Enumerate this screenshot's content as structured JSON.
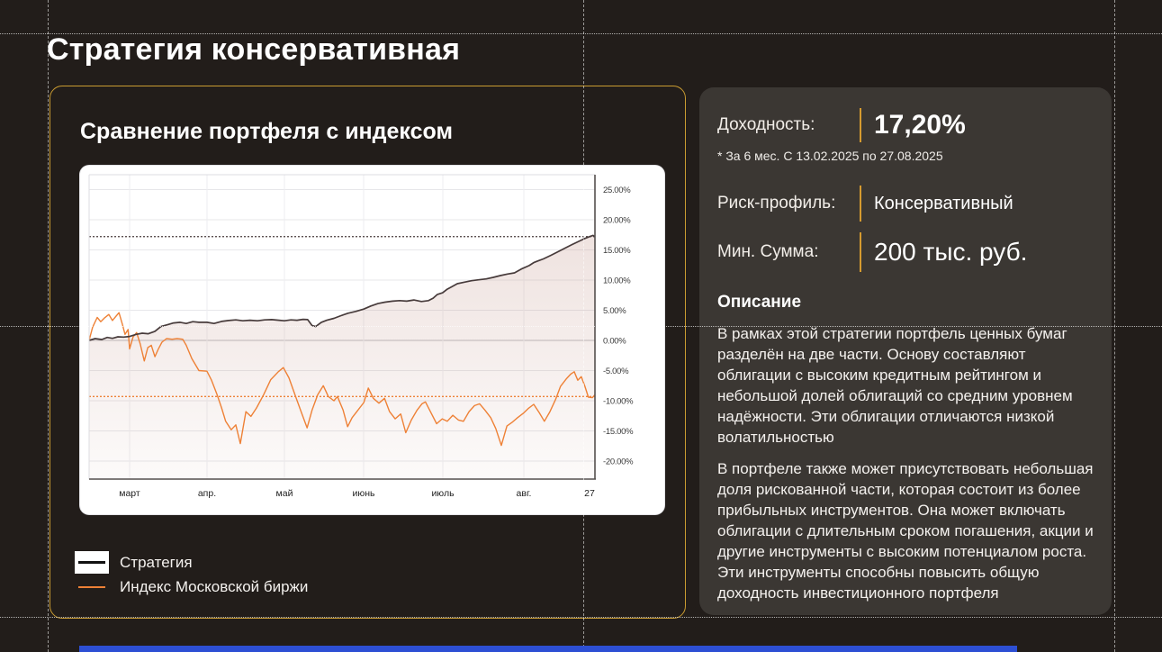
{
  "page": {
    "title": "Стратегия консервативная"
  },
  "chart_card": {
    "title": "Сравнение портфеля с индексом",
    "legend": [
      {
        "label": "Стратегия",
        "color": "#473b3b"
      },
      {
        "label": "Индекс Московской биржи",
        "color": "#ee8136"
      }
    ]
  },
  "info_card": {
    "returns": {
      "label": "Доходность:",
      "value": "17,20%"
    },
    "footnote": "* За 6 мес. С 13.02.2025 по 27.08.2025",
    "risk": {
      "label": "Риск-профиль:",
      "value": "Консервативный"
    },
    "min_sum": {
      "label": "Мин. Сумма:",
      "value": "200 тыс. руб."
    },
    "description_title": "Описание",
    "paragraphs": [
      "В рамках этой стратегии портфель ценных бумаг разделён на две части. Основу составляют облигации с высоким кредитным рейтингом и небольшой долей облигаций со средним уровнем надёжности. Эти облигации отличаются низкой волатильностью",
      "В портфеле также может присутствовать небольшая доля рискованной части, которая состоит из более прибыльных инструментов. Она может включать облигации с длительным сроком погашения, акции и другие инструменты с высоким потенциалом роста. Эти инструменты способны повысить общую доходность инвестиционного портфеля"
    ]
  },
  "colors": {
    "background": "#221d1a",
    "card_border": "#c99b31",
    "accent_gold": "#d69b2f",
    "strategy_line": "#473b3b",
    "index_line": "#ee8136",
    "panel": "#ffffff",
    "bottom_bar": "#2d4fd4"
  },
  "chart_data": {
    "type": "line",
    "title": "Сравнение портфеля с индексом",
    "x_axis": {
      "tick_labels": [
        "март",
        "апр.",
        "май",
        "июнь",
        "июль",
        "авг."
      ],
      "end_label": "27",
      "period": "13.02.2025 — 27.08.2025"
    },
    "y_axis": {
      "tick_values": [
        25,
        20,
        15,
        10,
        5,
        0,
        -5,
        -10,
        -15,
        -20
      ],
      "tick_labels": [
        "25.00%",
        "20.00%",
        "15.00%",
        "10.00%",
        "5.00%",
        "0.00%",
        "-5.00%",
        "-10.00%",
        "-15.00%",
        "-20.00%"
      ],
      "unit": "%",
      "ylim": [
        -23,
        27.5
      ]
    },
    "grid": true,
    "legend_position": "below-left",
    "reference_lines": [
      {
        "value": 17.2,
        "color": "#473b3b",
        "style": "dotted",
        "series": "Стратегия"
      },
      {
        "value": -9.3,
        "color": "#ee8136",
        "style": "dotted",
        "series": "Индекс Московской биржи"
      }
    ],
    "series": [
      {
        "name": "Стратегия",
        "color": "#473b3b",
        "final_value_pct": 17.2,
        "points": [
          [
            0,
            0
          ],
          [
            0.012,
            0.3
          ],
          [
            0.025,
            0.15
          ],
          [
            0.036,
            0.5
          ],
          [
            0.046,
            0.35
          ],
          [
            0.057,
            0.6
          ],
          [
            0.068,
            0.55
          ],
          [
            0.08,
            0.65
          ],
          [
            0.093,
            1.0
          ],
          [
            0.105,
            1.2
          ],
          [
            0.117,
            1.1
          ],
          [
            0.13,
            1.5
          ],
          [
            0.142,
            2.3
          ],
          [
            0.155,
            2.6
          ],
          [
            0.167,
            2.9
          ],
          [
            0.18,
            3.0
          ],
          [
            0.192,
            2.8
          ],
          [
            0.205,
            3.1
          ],
          [
            0.217,
            3.0
          ],
          [
            0.233,
            3.0
          ],
          [
            0.247,
            2.8
          ],
          [
            0.262,
            3.15
          ],
          [
            0.276,
            3.3
          ],
          [
            0.29,
            3.4
          ],
          [
            0.304,
            3.25
          ],
          [
            0.318,
            3.35
          ],
          [
            0.333,
            3.25
          ],
          [
            0.347,
            3.4
          ],
          [
            0.361,
            3.45
          ],
          [
            0.375,
            3.35
          ],
          [
            0.386,
            3.25
          ],
          [
            0.399,
            3.4
          ],
          [
            0.411,
            3.35
          ],
          [
            0.423,
            3.5
          ],
          [
            0.432,
            3.45
          ],
          [
            0.441,
            2.45
          ],
          [
            0.448,
            2.3
          ],
          [
            0.459,
            3.0
          ],
          [
            0.47,
            3.35
          ],
          [
            0.484,
            3.65
          ],
          [
            0.498,
            4.1
          ],
          [
            0.512,
            4.5
          ],
          [
            0.527,
            4.8
          ],
          [
            0.543,
            5.2
          ],
          [
            0.557,
            5.7
          ],
          [
            0.571,
            6.1
          ],
          [
            0.585,
            6.35
          ],
          [
            0.6,
            6.5
          ],
          [
            0.614,
            6.6
          ],
          [
            0.628,
            6.5
          ],
          [
            0.642,
            6.7
          ],
          [
            0.657,
            6.45
          ],
          [
            0.671,
            6.6
          ],
          [
            0.68,
            7.0
          ],
          [
            0.688,
            7.6
          ],
          [
            0.699,
            7.9
          ],
          [
            0.708,
            8.5
          ],
          [
            0.717,
            8.9
          ],
          [
            0.728,
            9.4
          ],
          [
            0.742,
            9.65
          ],
          [
            0.756,
            9.9
          ],
          [
            0.77,
            10.05
          ],
          [
            0.785,
            10.2
          ],
          [
            0.799,
            10.45
          ],
          [
            0.813,
            10.75
          ],
          [
            0.827,
            11.0
          ],
          [
            0.841,
            11.2
          ],
          [
            0.856,
            11.9
          ],
          [
            0.87,
            12.4
          ],
          [
            0.879,
            12.9
          ],
          [
            0.888,
            13.2
          ],
          [
            0.898,
            13.5
          ],
          [
            0.913,
            14.1
          ],
          [
            0.927,
            14.7
          ],
          [
            0.941,
            15.3
          ],
          [
            0.955,
            15.9
          ],
          [
            0.97,
            16.5
          ],
          [
            0.98,
            16.9
          ],
          [
            0.989,
            17.2
          ],
          [
            0.996,
            17.4
          ],
          [
            1,
            17.2
          ]
        ]
      },
      {
        "name": "Индекс Московской биржи",
        "color": "#ee8136",
        "final_value_pct": -9.0,
        "points": [
          [
            0,
            0
          ],
          [
            0.007,
            2.2
          ],
          [
            0.016,
            3.8
          ],
          [
            0.023,
            3.1
          ],
          [
            0.03,
            3.7
          ],
          [
            0.039,
            4.3
          ],
          [
            0.046,
            3.3
          ],
          [
            0.059,
            4.6
          ],
          [
            0.066,
            2.6
          ],
          [
            0.071,
            1.0
          ],
          [
            0.077,
            1.8
          ],
          [
            0.08,
            -1.4
          ],
          [
            0.087,
            0.6
          ],
          [
            0.094,
            1.3
          ],
          [
            0.101,
            -0.6
          ],
          [
            0.109,
            -3.4
          ],
          [
            0.116,
            -1.2
          ],
          [
            0.123,
            -0.8
          ],
          [
            0.13,
            -2.7
          ],
          [
            0.137,
            -1.4
          ],
          [
            0.144,
            -0.3
          ],
          [
            0.153,
            0.3
          ],
          [
            0.164,
            0.2
          ],
          [
            0.174,
            0.3
          ],
          [
            0.185,
            0.2
          ],
          [
            0.192,
            -0.8
          ],
          [
            0.203,
            -3.0
          ],
          [
            0.217,
            -5.0
          ],
          [
            0.233,
            -5.1
          ],
          [
            0.242,
            -6.6
          ],
          [
            0.253,
            -9.0
          ],
          [
            0.262,
            -11.2
          ],
          [
            0.27,
            -13.4
          ],
          [
            0.281,
            -14.8
          ],
          [
            0.29,
            -14.0
          ],
          [
            0.299,
            -17.1
          ],
          [
            0.31,
            -11.8
          ],
          [
            0.32,
            -12.6
          ],
          [
            0.331,
            -11.2
          ],
          [
            0.345,
            -9.0
          ],
          [
            0.359,
            -6.5
          ],
          [
            0.374,
            -5.2
          ],
          [
            0.384,
            -4.5
          ],
          [
            0.395,
            -6.2
          ],
          [
            0.409,
            -9.5
          ],
          [
            0.42,
            -12.0
          ],
          [
            0.431,
            -14.5
          ],
          [
            0.441,
            -11.5
          ],
          [
            0.452,
            -9.0
          ],
          [
            0.463,
            -7.5
          ],
          [
            0.473,
            -9.3
          ],
          [
            0.484,
            -10.0
          ],
          [
            0.491,
            -9.3
          ],
          [
            0.502,
            -11.5
          ],
          [
            0.511,
            -14.3
          ],
          [
            0.52,
            -12.8
          ],
          [
            0.53,
            -11.7
          ],
          [
            0.543,
            -10.3
          ],
          [
            0.552,
            -7.9
          ],
          [
            0.562,
            -9.6
          ],
          [
            0.573,
            -10.4
          ],
          [
            0.584,
            -9.6
          ],
          [
            0.594,
            -11.8
          ],
          [
            0.605,
            -13.0
          ],
          [
            0.616,
            -12.2
          ],
          [
            0.626,
            -15.3
          ],
          [
            0.637,
            -13.2
          ],
          [
            0.648,
            -11.6
          ],
          [
            0.658,
            -10.5
          ],
          [
            0.665,
            -10.2
          ],
          [
            0.676,
            -12.0
          ],
          [
            0.687,
            -13.8
          ],
          [
            0.698,
            -13.0
          ],
          [
            0.708,
            -13.4
          ],
          [
            0.719,
            -12.4
          ],
          [
            0.73,
            -13.2
          ],
          [
            0.74,
            -13.4
          ],
          [
            0.751,
            -11.8
          ],
          [
            0.762,
            -10.8
          ],
          [
            0.772,
            -10.5
          ],
          [
            0.783,
            -11.6
          ],
          [
            0.794,
            -12.8
          ],
          [
            0.804,
            -14.6
          ],
          [
            0.815,
            -17.4
          ],
          [
            0.826,
            -14.2
          ],
          [
            0.836,
            -13.6
          ],
          [
            0.847,
            -12.8
          ],
          [
            0.858,
            -12.1
          ],
          [
            0.868,
            -11.3
          ],
          [
            0.879,
            -10.6
          ],
          [
            0.89,
            -12.0
          ],
          [
            0.9,
            -13.4
          ],
          [
            0.911,
            -11.8
          ],
          [
            0.922,
            -9.8
          ],
          [
            0.932,
            -7.6
          ],
          [
            0.943,
            -6.4
          ],
          [
            0.952,
            -5.6
          ],
          [
            0.959,
            -5.2
          ],
          [
            0.966,
            -6.6
          ],
          [
            0.973,
            -6.0
          ],
          [
            0.98,
            -7.6
          ],
          [
            0.987,
            -9.4
          ],
          [
            0.995,
            -9.5
          ],
          [
            1,
            -9.0
          ]
        ]
      }
    ]
  }
}
